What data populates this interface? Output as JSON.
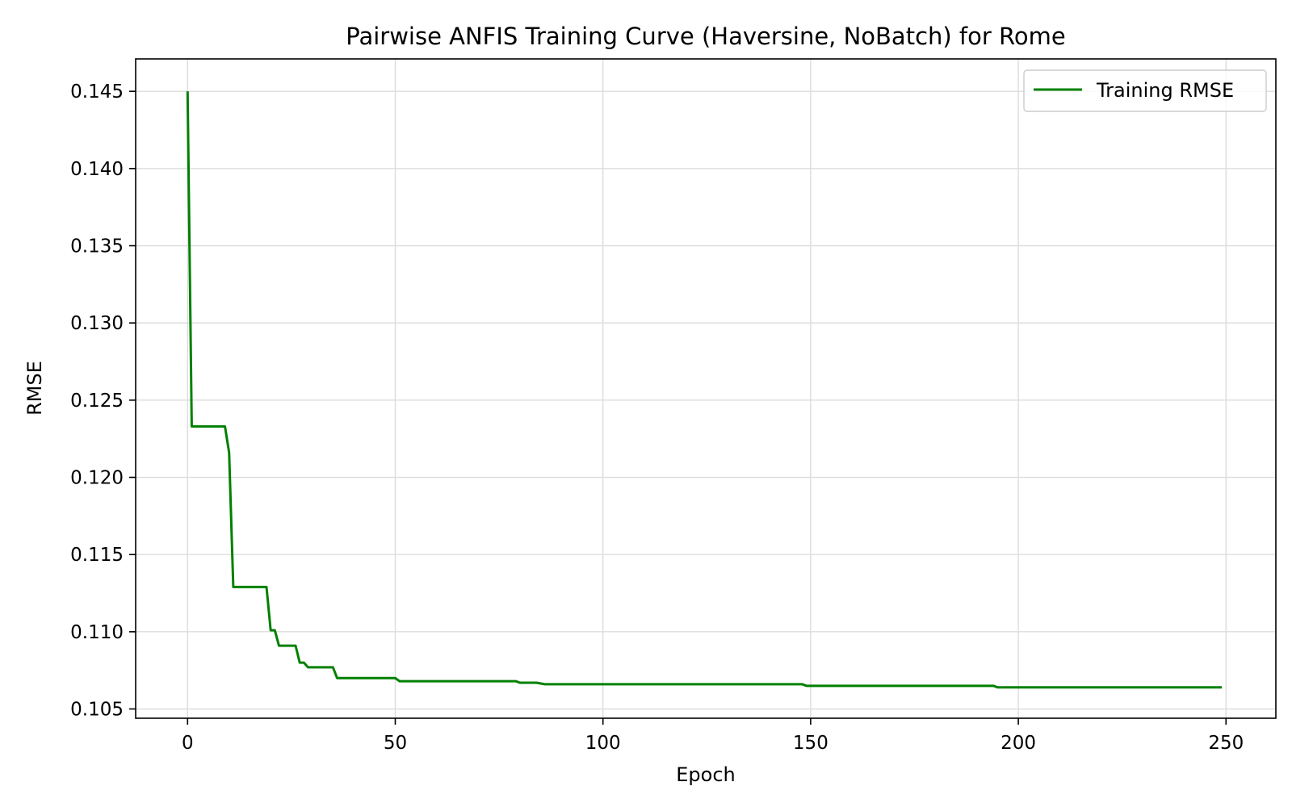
{
  "chart_data": {
    "type": "line",
    "title": "Pairwise ANFIS Training Curve (Haversine, NoBatch) for Rome",
    "xlabel": "Epoch",
    "ylabel": "RMSE",
    "xlim": [
      -12.5,
      262
    ],
    "ylim": [
      0.1044,
      0.1471
    ],
    "xticks": [
      0,
      50,
      100,
      150,
      200,
      250
    ],
    "xtick_labels": [
      "0",
      "50",
      "100",
      "150",
      "200",
      "250"
    ],
    "yticks": [
      0.105,
      0.11,
      0.115,
      0.12,
      0.125,
      0.13,
      0.135,
      0.14,
      0.145
    ],
    "ytick_labels": [
      "0.105",
      "0.110",
      "0.115",
      "0.120",
      "0.125",
      "0.130",
      "0.135",
      "0.140",
      "0.145"
    ],
    "grid": true,
    "legend": {
      "position": "top-right",
      "entries": [
        "Training RMSE"
      ]
    },
    "series": [
      {
        "name": "Training RMSE",
        "color": "#008000",
        "x": [
          0,
          1,
          9,
          10,
          11,
          19,
          20,
          21,
          22,
          26,
          27,
          28,
          29,
          35,
          36,
          50,
          51,
          72,
          73,
          79,
          80,
          84,
          86,
          148,
          149,
          194,
          195,
          249
        ],
        "y": [
          0.145,
          0.1233,
          0.1233,
          0.1216,
          0.1129,
          0.1129,
          0.1101,
          0.1101,
          0.1091,
          0.1091,
          0.108,
          0.108,
          0.1077,
          0.1077,
          0.107,
          0.107,
          0.1068,
          0.1068,
          0.1068,
          0.1068,
          0.1067,
          0.1067,
          0.1066,
          0.1066,
          0.1065,
          0.1065,
          0.1064,
          0.1064
        ]
      }
    ]
  }
}
